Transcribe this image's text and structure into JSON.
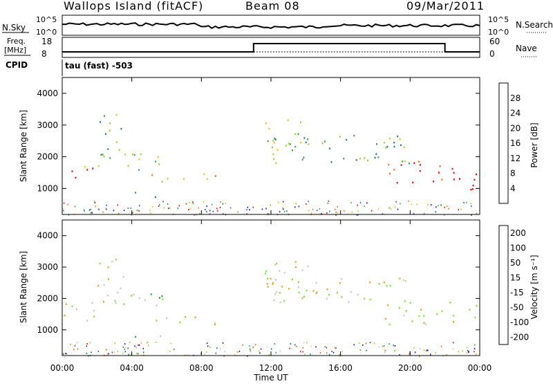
{
  "header": {
    "station": "Wallops Island (fitACF)",
    "beam": "Beam 08",
    "date": "09/Mar/2011"
  },
  "nsky_panel": {
    "left_label": "N.Sky",
    "right_label": "N.Search",
    "left_ticks": [
      "10^5",
      "10^0"
    ],
    "right_ticks": [
      "10^5",
      "10^0"
    ]
  },
  "freq_panel": {
    "left_label_1": "Freq.",
    "left_label_2": "[MHz]",
    "left_label_3": "CPID",
    "right_label": "Nave",
    "left_ticks": [
      "18",
      "8"
    ],
    "right_ticks": [
      "60",
      "0"
    ]
  },
  "cpid_text": "tau (fast) -503",
  "chart_data": [
    {
      "type": "heatmap",
      "name": "power",
      "ylabel": "Slant Range [km]",
      "yticks": [
        "1000",
        "2000",
        "3000",
        "4000"
      ],
      "ylim": [
        180,
        4500
      ],
      "xlim": [
        0,
        24
      ],
      "colorbar_label": "Power [dB]",
      "colorbar_ticks": [
        "4",
        "8",
        "12",
        "16",
        "20",
        "24",
        "28"
      ],
      "colorbar_colors": [
        "#1010e0",
        "#2050b0",
        "#307878",
        "#48a050",
        "#a8d030",
        "#f0c020",
        "#f07020",
        "#e01010"
      ],
      "regions": [
        {
          "x": [
            0.0,
            1.0
          ],
          "y": [
            1300,
            1700
          ],
          "level": 8
        },
        {
          "x": [
            1.0,
            2.3
          ],
          "y": [
            1400,
            1900
          ],
          "level": 6
        },
        {
          "x": [
            2.0,
            3.7
          ],
          "y": [
            1800,
            3400
          ],
          "level": 3
        },
        {
          "x": [
            3.7,
            6.0
          ],
          "y": [
            1500,
            2200
          ],
          "level": 4
        },
        {
          "x": [
            5.0,
            9.0
          ],
          "y": [
            1200,
            1500
          ],
          "level": 5
        },
        {
          "x": [
            3.5,
            5.8
          ],
          "y": [
            750,
            900
          ],
          "level": 2
        },
        {
          "x": [
            11.5,
            14.5
          ],
          "y": [
            2200,
            3200
          ],
          "level": 4
        },
        {
          "x": [
            12.0,
            20.0
          ],
          "y": [
            1800,
            2700
          ],
          "level": 3
        },
        {
          "x": [
            18.5,
            22.0
          ],
          "y": [
            1200,
            1900
          ],
          "level": 7
        },
        {
          "x": [
            22.0,
            24.0
          ],
          "y": [
            900,
            1700
          ],
          "level": 8
        }
      ]
    },
    {
      "type": "heatmap",
      "name": "velocity",
      "ylabel": "Slant Range [km]",
      "yticks": [
        "1000",
        "2000",
        "3000",
        "4000"
      ],
      "ylim": [
        180,
        4500
      ],
      "xlim": [
        0,
        24
      ],
      "xlabel": "Time UT",
      "xticks": [
        "00:00",
        "04:00",
        "08:00",
        "12:00",
        "16:00",
        "20:00",
        "00:00"
      ],
      "colorbar_label": "Velocity [m s⁻¹]",
      "colorbar_ticks": [
        "200",
        "100",
        "50",
        "15",
        "-15",
        "-50",
        "-100",
        "-200"
      ],
      "colorbar_colors": [
        "#1010c0",
        "#206080",
        "#30a040",
        "#80e040",
        "#c8c8c0",
        "#f0a020",
        "#f06010",
        "#e01010"
      ],
      "regions": [
        {
          "x": [
            0.0,
            2.3
          ],
          "y": [
            1300,
            1900
          ],
          "level": 4
        },
        {
          "x": [
            2.0,
            3.7
          ],
          "y": [
            1800,
            3400
          ],
          "level": 4
        },
        {
          "x": [
            3.7,
            6.0
          ],
          "y": [
            1500,
            2200
          ],
          "level": 3
        },
        {
          "x": [
            5.0,
            9.0
          ],
          "y": [
            1200,
            1500
          ],
          "level": 4
        },
        {
          "x": [
            3.5,
            5.8
          ],
          "y": [
            750,
            900
          ],
          "level": 3
        },
        {
          "x": [
            11.5,
            14.5
          ],
          "y": [
            2200,
            3200
          ],
          "level": 4
        },
        {
          "x": [
            12.0,
            20.0
          ],
          "y": [
            1800,
            2700
          ],
          "level": 4
        },
        {
          "x": [
            18.5,
            24.0
          ],
          "y": [
            1200,
            1900
          ],
          "level": 4
        }
      ]
    }
  ]
}
